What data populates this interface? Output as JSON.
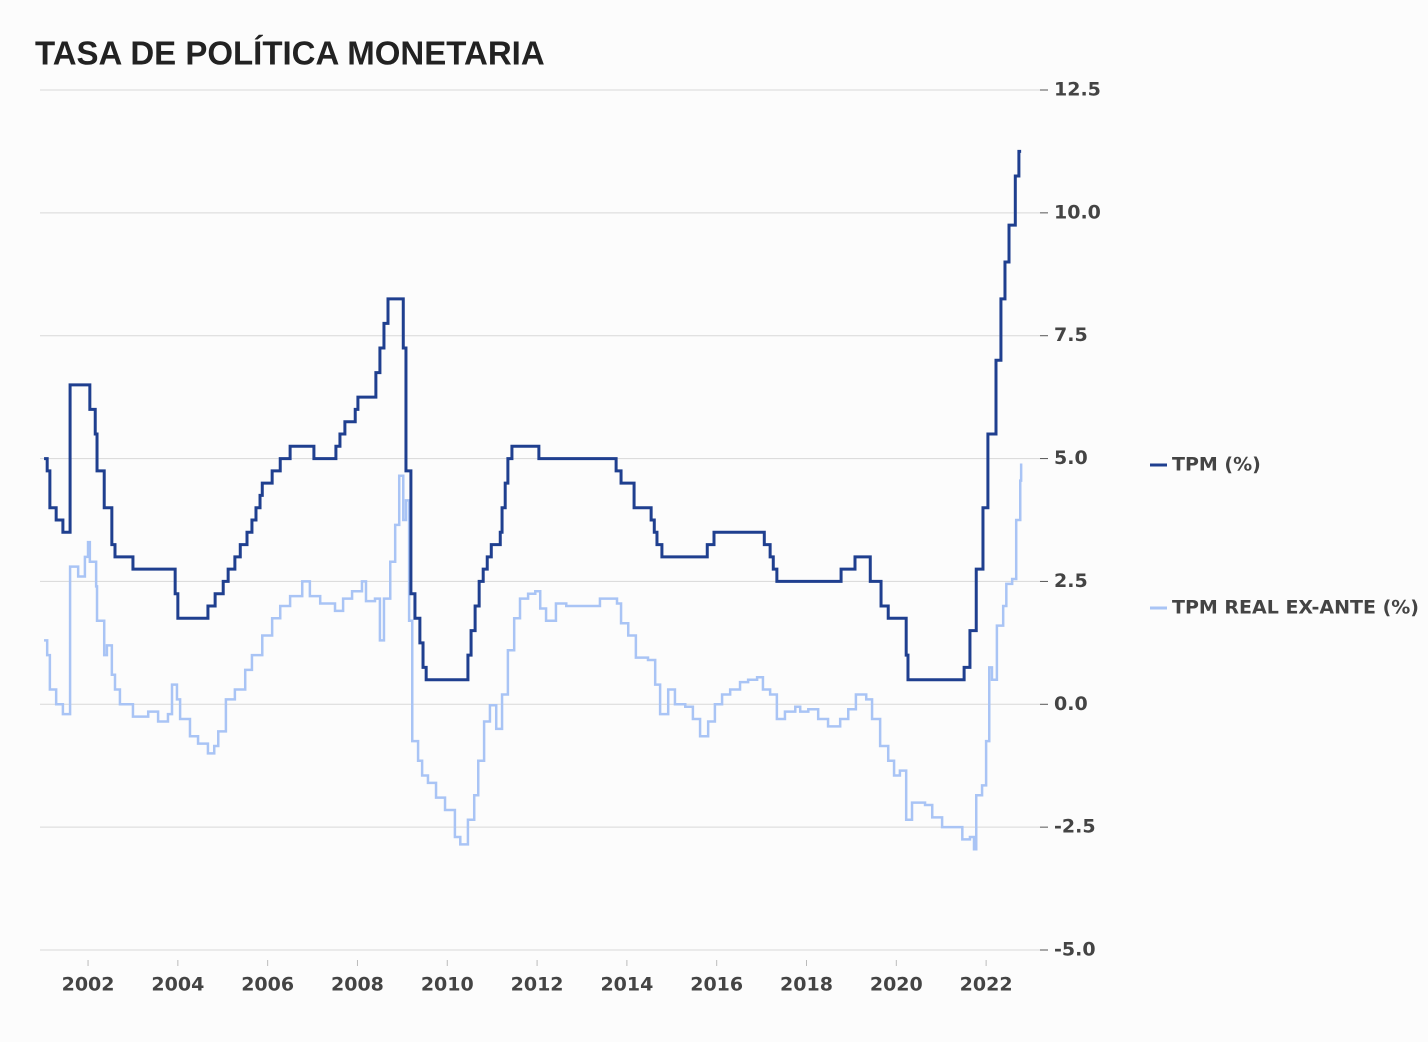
{
  "chart_data": {
    "type": "line",
    "step": true,
    "title": "TASA DE POLÍTICA MONETARIA",
    "legend": "right",
    "grid": true,
    "xlim": [
      2000.93,
      2023.2
    ],
    "xticks": [
      2002,
      2004,
      2006,
      2008,
      2010,
      2012,
      2014,
      2016,
      2018,
      2020,
      2022
    ],
    "ylim": [
      -5,
      12.5
    ],
    "yticks": [
      {
        "value": -5,
        "label": "-5.0"
      },
      -2.5,
      {
        "value": 0,
        "label": "0.0"
      },
      2.5,
      {
        "value": 5,
        "label": "5.0"
      },
      7.5,
      {
        "value": 10,
        "label": "10.0"
      },
      12.5
    ],
    "series": [
      {
        "name": "TPM (%)",
        "color": "#1f3f8f",
        "x": [
          2001.02,
          2001.09,
          2001.15,
          2001.29,
          2001.44,
          2001.6,
          2002.04,
          2002.16,
          2002.2,
          2002.36,
          2002.53,
          2002.6,
          2003.0,
          2003.94,
          2004.0,
          2004.67,
          2004.83,
          2005.01,
          2005.12,
          2005.27,
          2005.39,
          2005.54,
          2005.65,
          2005.74,
          2005.83,
          2005.88,
          2006.1,
          2006.28,
          2006.5,
          2007.03,
          2007.52,
          2007.61,
          2007.72,
          2007.95,
          2008.01,
          2008.41,
          2008.5,
          2008.59,
          2008.68,
          2009.02,
          2009.08,
          2009.19,
          2009.28,
          2009.39,
          2009.46,
          2009.53,
          2010.46,
          2010.53,
          2010.62,
          2010.71,
          2010.8,
          2010.89,
          2010.98,
          2011.18,
          2011.22,
          2011.29,
          2011.35,
          2011.44,
          2012.04,
          2013.76,
          2013.87,
          2014.16,
          2014.54,
          2014.61,
          2014.67,
          2014.78,
          2015.79,
          2015.94,
          2017.06,
          2017.19,
          2017.26,
          2017.34,
          2018.77,
          2019.08,
          2019.42,
          2019.66,
          2019.82,
          2020.22,
          2020.26,
          2021.51,
          2021.64,
          2021.78,
          2021.93,
          2022.04,
          2022.22,
          2022.33,
          2022.42,
          2022.51,
          2022.65,
          2022.73,
          2022.78
        ],
        "values": [
          5.0,
          4.75,
          4.0,
          3.75,
          3.5,
          6.5,
          6.0,
          5.5,
          4.75,
          4.0,
          3.25,
          3.0,
          2.75,
          2.25,
          1.75,
          2.0,
          2.25,
          2.5,
          2.75,
          3.0,
          3.25,
          3.5,
          3.75,
          4.0,
          4.25,
          4.5,
          4.75,
          5.0,
          5.25,
          5.0,
          5.25,
          5.5,
          5.75,
          6.0,
          6.25,
          6.75,
          7.25,
          7.75,
          8.25,
          7.25,
          4.75,
          2.25,
          1.75,
          1.25,
          0.75,
          0.5,
          1.0,
          1.5,
          2.0,
          2.5,
          2.75,
          3.0,
          3.25,
          3.5,
          4.0,
          4.5,
          5.0,
          5.25,
          5.0,
          4.75,
          4.5,
          4.0,
          3.75,
          3.5,
          3.25,
          3.0,
          3.25,
          3.5,
          3.25,
          3.0,
          2.75,
          2.5,
          2.75,
          3.0,
          2.5,
          2.0,
          1.75,
          1.0,
          0.5,
          0.75,
          1.5,
          2.75,
          4.0,
          5.5,
          7.0,
          8.25,
          9.0,
          9.75,
          10.75,
          11.25,
          11.25
        ]
      },
      {
        "name": "TPM REAL EX-ANTE (%)",
        "color": "#a9c4f5",
        "x": [
          2001.02,
          2001.09,
          2001.15,
          2001.29,
          2001.44,
          2001.6,
          2001.78,
          2001.93,
          2002.0,
          2002.04,
          2002.18,
          2002.2,
          2002.36,
          2002.42,
          2002.53,
          2002.6,
          2002.71,
          2003.0,
          2003.34,
          2003.56,
          2003.78,
          2003.87,
          2003.98,
          2004.05,
          2004.27,
          2004.45,
          2004.67,
          2004.81,
          2004.9,
          2005.07,
          2005.27,
          2005.5,
          2005.65,
          2005.88,
          2006.1,
          2006.28,
          2006.5,
          2006.77,
          2006.94,
          2007.17,
          2007.5,
          2007.68,
          2007.88,
          2008.1,
          2008.19,
          2008.39,
          2008.5,
          2008.59,
          2008.73,
          2008.84,
          2008.93,
          2009.02,
          2009.08,
          2009.15,
          2009.22,
          2009.35,
          2009.44,
          2009.57,
          2009.75,
          2009.95,
          2010.17,
          2010.29,
          2010.46,
          2010.6,
          2010.69,
          2010.82,
          2010.95,
          2011.09,
          2011.22,
          2011.35,
          2011.49,
          2011.62,
          2011.8,
          2011.96,
          2012.07,
          2012.2,
          2012.42,
          2012.65,
          2013.29,
          2013.4,
          2013.78,
          2013.87,
          2014.03,
          2014.2,
          2014.47,
          2014.63,
          2014.74,
          2014.92,
          2015.07,
          2015.3,
          2015.47,
          2015.63,
          2015.81,
          2015.96,
          2016.12,
          2016.3,
          2016.52,
          2016.7,
          2016.9,
          2017.03,
          2017.19,
          2017.34,
          2017.52,
          2017.75,
          2017.86,
          2018.04,
          2018.26,
          2018.48,
          2018.75,
          2018.93,
          2019.1,
          2019.33,
          2019.46,
          2019.64,
          2019.82,
          2019.95,
          2020.08,
          2020.22,
          2020.35,
          2020.64,
          2020.8,
          2021.02,
          2021.31,
          2021.47,
          2021.64,
          2021.73,
          2021.78,
          2021.91,
          2022.0,
          2022.07,
          2022.13,
          2022.24,
          2022.38,
          2022.45,
          2022.58,
          2022.67,
          2022.76,
          2022.78
        ],
        "values": [
          1.3,
          1.0,
          0.3,
          0.0,
          -0.2,
          2.8,
          2.6,
          3.0,
          3.3,
          2.9,
          2.4,
          1.7,
          1.0,
          1.2,
          0.6,
          0.3,
          0.0,
          -0.25,
          -0.15,
          -0.35,
          -0.2,
          0.4,
          0.1,
          -0.3,
          -0.65,
          -0.8,
          -1.0,
          -0.85,
          -0.55,
          0.1,
          0.3,
          0.7,
          1.0,
          1.4,
          1.75,
          2.0,
          2.2,
          2.5,
          2.2,
          2.05,
          1.9,
          2.15,
          2.3,
          2.5,
          2.1,
          2.15,
          1.3,
          2.15,
          2.9,
          3.65,
          4.65,
          3.75,
          4.15,
          1.7,
          -0.75,
          -1.15,
          -1.45,
          -1.6,
          -1.9,
          -2.15,
          -2.7,
          -2.85,
          -2.35,
          -1.85,
          -1.15,
          -0.35,
          -0.02,
          -0.5,
          0.2,
          1.1,
          1.75,
          2.15,
          2.25,
          2.3,
          1.95,
          1.7,
          2.05,
          2.0,
          2.0,
          2.15,
          2.05,
          1.65,
          1.4,
          0.95,
          0.9,
          0.4,
          -0.2,
          0.3,
          0.0,
          -0.05,
          -0.3,
          -0.65,
          -0.35,
          0.0,
          0.2,
          0.3,
          0.45,
          0.5,
          0.55,
          0.3,
          0.2,
          -0.3,
          -0.15,
          -0.05,
          -0.15,
          -0.1,
          -0.3,
          -0.45,
          -0.3,
          -0.1,
          0.2,
          0.1,
          -0.3,
          -0.85,
          -1.15,
          -1.45,
          -1.35,
          -2.35,
          -2.0,
          -2.05,
          -2.3,
          -2.5,
          -2.5,
          -2.75,
          -2.7,
          -2.95,
          -1.85,
          -1.65,
          -0.75,
          0.75,
          0.5,
          1.6,
          2.0,
          2.45,
          2.55,
          3.75,
          4.55,
          4.9
        ]
      }
    ]
  }
}
